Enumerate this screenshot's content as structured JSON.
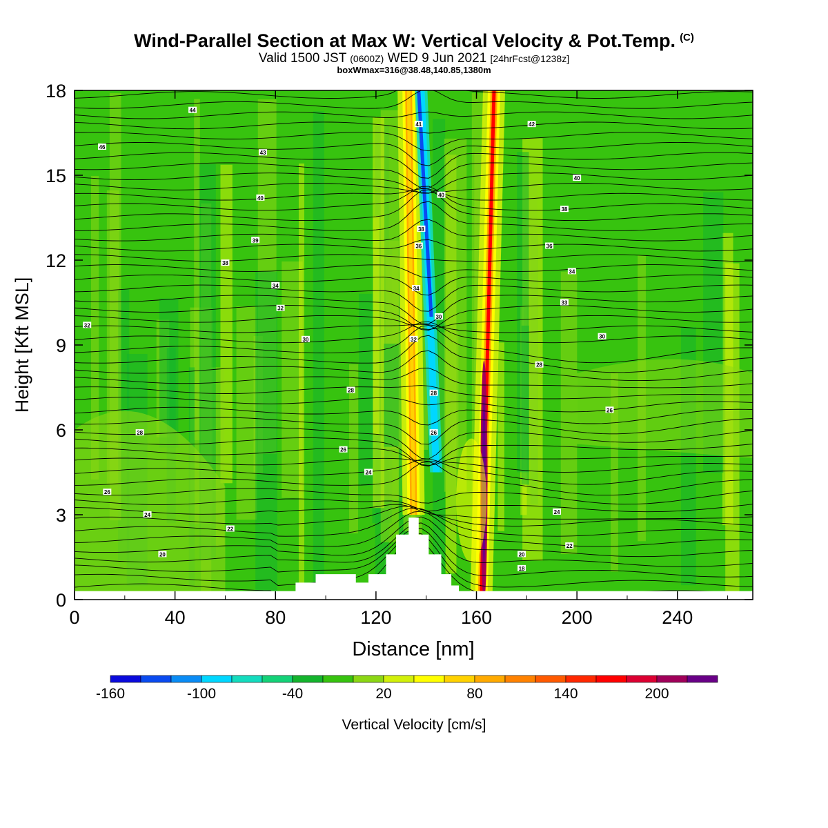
{
  "header": {
    "title": "Wind-Parallel Section at Max W: Vertical Velocity & Pot.Temp.",
    "title_mark": "(C)",
    "valid_prefix": "Valid 1500 JST",
    "valid_utc": "(0600Z)",
    "valid_date": "WED 9 Jun 2021",
    "forecast": "[24hrFcst@1238z]",
    "box_info": "boxWmax=316@38.48,140.85,1380m"
  },
  "chart_data": {
    "type": "heatmap",
    "xlabel": "Distance [nm]",
    "ylabel": "Height [Kft MSL]",
    "xlim": [
      0,
      270
    ],
    "ylim": [
      0,
      18
    ],
    "x_ticks": [
      "0",
      "40",
      "80",
      "120",
      "160",
      "200",
      "240"
    ],
    "x_tick_values": [
      0,
      40,
      80,
      120,
      160,
      200,
      240
    ],
    "y_ticks": [
      "0",
      "3",
      "6",
      "9",
      "12",
      "15",
      "18"
    ],
    "y_tick_values": [
      0,
      3,
      6,
      9,
      12,
      15,
      18
    ],
    "colorbar": {
      "label": "Vertical Velocity [cm/s]",
      "tick_labels": [
        "-160",
        "-100",
        "-40",
        "20",
        "80",
        "140",
        "200"
      ],
      "colors": [
        "#0a0adc",
        "#0a4bf0",
        "#0a8cf5",
        "#00d7ff",
        "#14dcbe",
        "#14d278",
        "#14b42d",
        "#37c30f",
        "#8cd714",
        "#d2f00a",
        "#ffff00",
        "#ffd200",
        "#ffaa00",
        "#ff8200",
        "#ff5a00",
        "#ff2800",
        "#ff0000",
        "#dc0032",
        "#a0005a",
        "#690087"
      ]
    },
    "background_level_color": "#37c30f",
    "updraft_bands": [
      {
        "name": "upper-left updraft",
        "x_bottom": 135,
        "x_top": 133,
        "y_bottom": 3,
        "y_top": 18,
        "color": "#ffd200"
      },
      {
        "name": "main updraft",
        "x_bottom": 162,
        "x_top": 167,
        "y_bottom": 0.3,
        "y_top": 18,
        "color": "#ff0000"
      }
    ],
    "downdraft_bands": [
      {
        "name": "cold downdraft",
        "x_bottom": 144,
        "x_top": 138,
        "y_bottom": 4.5,
        "y_top": 18,
        "color": "#00d7ff"
      }
    ],
    "terrain": [
      [
        0,
        0
      ],
      [
        88,
        0
      ],
      [
        88,
        0.6
      ],
      [
        96,
        0.6
      ],
      [
        96,
        0.9
      ],
      [
        112,
        0.9
      ],
      [
        112,
        0.6
      ],
      [
        117,
        0.6
      ],
      [
        117,
        0.9
      ],
      [
        124,
        0.9
      ],
      [
        124,
        1.6
      ],
      [
        128,
        1.6
      ],
      [
        128,
        2.3
      ],
      [
        133,
        2.3
      ],
      [
        133,
        2.9
      ],
      [
        137,
        2.9
      ],
      [
        137,
        2.3
      ],
      [
        141,
        2.3
      ],
      [
        141,
        1.6
      ],
      [
        146,
        1.6
      ],
      [
        146,
        0.9
      ],
      [
        150,
        0.9
      ],
      [
        150,
        0.5
      ],
      [
        153,
        0.5
      ],
      [
        153,
        0
      ],
      [
        270,
        0
      ]
    ],
    "contour_labels": [
      {
        "text": "44",
        "x": 47,
        "y": 17.3
      },
      {
        "text": "46",
        "x": 11,
        "y": 16.0
      },
      {
        "text": "43",
        "x": 75,
        "y": 15.8
      },
      {
        "text": "40",
        "x": 74,
        "y": 14.2
      },
      {
        "text": "39",
        "x": 72,
        "y": 12.7
      },
      {
        "text": "38",
        "x": 60,
        "y": 11.9
      },
      {
        "text": "34",
        "x": 80,
        "y": 11.1
      },
      {
        "text": "32",
        "x": 82,
        "y": 10.3
      },
      {
        "text": "32",
        "x": 5,
        "y": 9.7
      },
      {
        "text": "30",
        "x": 92,
        "y": 9.2
      },
      {
        "text": "28",
        "x": 110,
        "y": 7.4
      },
      {
        "text": "28",
        "x": 26,
        "y": 5.9
      },
      {
        "text": "26",
        "x": 107,
        "y": 5.3
      },
      {
        "text": "24",
        "x": 117,
        "y": 4.5
      },
      {
        "text": "26",
        "x": 13,
        "y": 3.8
      },
      {
        "text": "24",
        "x": 29,
        "y": 3.0
      },
      {
        "text": "22",
        "x": 62,
        "y": 2.5
      },
      {
        "text": "20",
        "x": 35,
        "y": 1.6
      },
      {
        "text": "41",
        "x": 137,
        "y": 16.8
      },
      {
        "text": "40",
        "x": 146,
        "y": 14.3
      },
      {
        "text": "38",
        "x": 138,
        "y": 13.1
      },
      {
        "text": "36",
        "x": 137,
        "y": 12.5
      },
      {
        "text": "34",
        "x": 136,
        "y": 11.0
      },
      {
        "text": "30",
        "x": 145,
        "y": 10.0
      },
      {
        "text": "32",
        "x": 135,
        "y": 9.2
      },
      {
        "text": "28",
        "x": 143,
        "y": 7.3
      },
      {
        "text": "26",
        "x": 143,
        "y": 5.9
      },
      {
        "text": "42",
        "x": 182,
        "y": 16.8
      },
      {
        "text": "40",
        "x": 200,
        "y": 14.9
      },
      {
        "text": "38",
        "x": 195,
        "y": 13.8
      },
      {
        "text": "36",
        "x": 189,
        "y": 12.5
      },
      {
        "text": "34",
        "x": 198,
        "y": 11.6
      },
      {
        "text": "33",
        "x": 195,
        "y": 10.5
      },
      {
        "text": "30",
        "x": 210,
        "y": 9.3
      },
      {
        "text": "28",
        "x": 185,
        "y": 8.3
      },
      {
        "text": "26",
        "x": 213,
        "y": 6.7
      },
      {
        "text": "24",
        "x": 192,
        "y": 3.1
      },
      {
        "text": "22",
        "x": 197,
        "y": 1.9
      },
      {
        "text": "20",
        "x": 178,
        "y": 1.6
      },
      {
        "text": "18",
        "x": 178,
        "y": 1.1
      }
    ]
  }
}
